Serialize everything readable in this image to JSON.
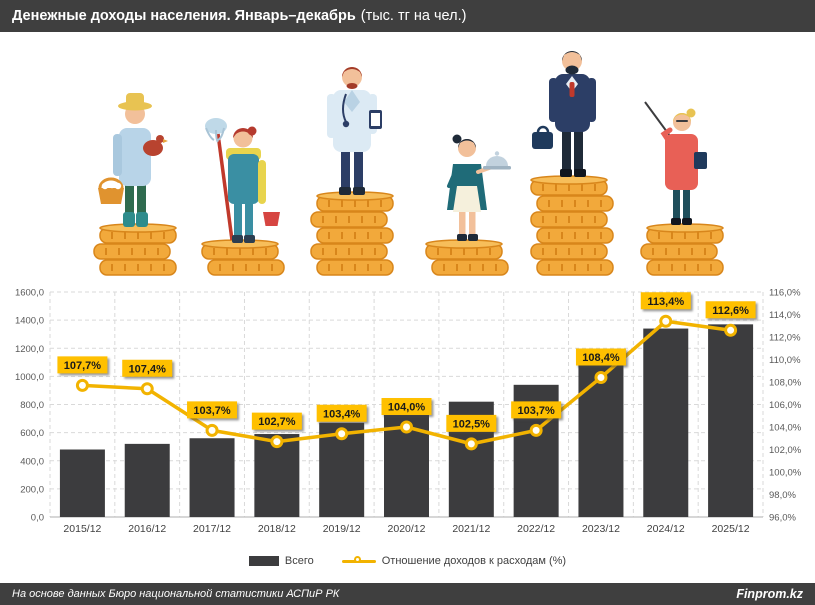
{
  "header": {
    "title_bold": "Денежные доходы населения. Январь–декабрь",
    "title_paren": "(тыс. тг на чел.)"
  },
  "illustrations": [
    "farmer",
    "cleaner",
    "doctor",
    "waitress",
    "businessman",
    "teacher"
  ],
  "chart_data": {
    "type": "bar",
    "combo": "bar+line",
    "categories": [
      "2015/12",
      "2016/12",
      "2017/12",
      "2018/12",
      "2019/12",
      "2020/12",
      "2021/12",
      "2022/12",
      "2023/12",
      "2024/12",
      "2025/12"
    ],
    "series": [
      {
        "name": "Всего",
        "type": "bar",
        "axis": "left",
        "color": "#3c3c3e",
        "values": [
          480,
          520,
          560,
          590,
          670,
          800,
          820,
          940,
          1130,
          1340,
          1370
        ]
      },
      {
        "name": "Отношение доходов к расходам (%)",
        "type": "line",
        "axis": "right",
        "color": "#f2b300",
        "values": [
          107.7,
          107.4,
          103.7,
          102.7,
          103.4,
          104.0,
          102.5,
          103.7,
          108.4,
          113.4,
          112.6
        ],
        "labels": [
          "107,7%",
          "107,4%",
          "103,7%",
          "102,7%",
          "103,4%",
          "104,0%",
          "102,5%",
          "103,7%",
          "108,4%",
          "113,4%",
          "112,6%"
        ]
      }
    ],
    "left_axis": {
      "min": 0,
      "max": 1600,
      "step": 200,
      "tick_labels": [
        "0,0",
        "200,0",
        "400,0",
        "600,0",
        "800,0",
        "1000,0",
        "1200,0",
        "1400,0",
        "1600,0"
      ]
    },
    "right_axis": {
      "min": 96,
      "max": 116,
      "step": 2,
      "tick_labels": [
        "96,0%",
        "98,0%",
        "100,0%",
        "102,0%",
        "104,0%",
        "106,0%",
        "108,0%",
        "110,0%",
        "112,0%",
        "114,0%",
        "116,0%"
      ]
    },
    "grid": true,
    "legend_position": "bottom",
    "label_box_color": "#FFC000"
  },
  "footer": {
    "source": "На основе данных Бюро национальной статистики АСПиР РК",
    "brand": "Finprom.kz"
  },
  "colors": {
    "header_bg": "#3f3f3f",
    "bar": "#3c3c3e",
    "line": "#f2b300",
    "label_box": "#ffc000",
    "coin": "#f2a93b",
    "coin_edge": "#d8861b"
  }
}
